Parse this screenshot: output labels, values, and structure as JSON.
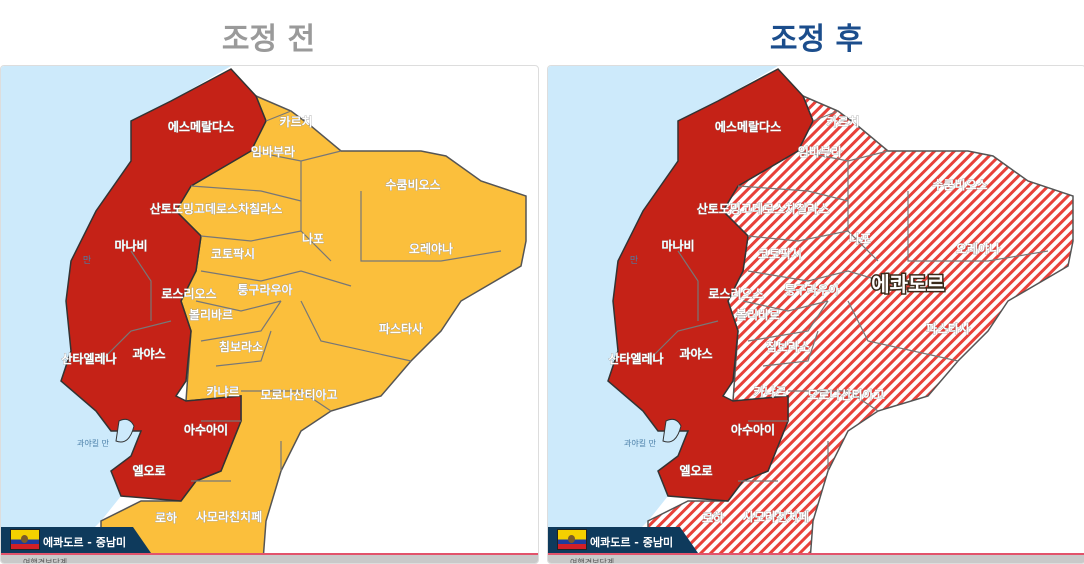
{
  "titles": {
    "before": "조정 전",
    "after": "조정 후"
  },
  "colors": {
    "level_red": "#c52217",
    "level_yellow": "#fbbf3c",
    "sea": "#cdeafb",
    "title_after": "#1b4d8c",
    "title_before": "#9a9a9a"
  },
  "map": {
    "country_label": "에콰도르",
    "badge": "에콰도르 - 중남미",
    "gulf_label": "과야킬 만",
    "bay_label": "만",
    "footer_text": "여행경보단계",
    "provinces": [
      "에스메랄다스",
      "카르치",
      "임바부라",
      "수쿰비오스",
      "산토도밍고데로스차칠라스",
      "나포",
      "오레야나",
      "마나비",
      "코토팍시",
      "로스리오스",
      "퉁구라우아",
      "볼리바르",
      "파스타사",
      "침보라소",
      "산타엘레나",
      "과야스",
      "카냐르",
      "모로나산티아고",
      "아수아이",
      "엘오로",
      "로하",
      "사모라친치페"
    ]
  },
  "before": {
    "west_level": "red",
    "east_level": "yellow"
  },
  "after": {
    "west_level": "red",
    "east_level": "red-hatched"
  }
}
